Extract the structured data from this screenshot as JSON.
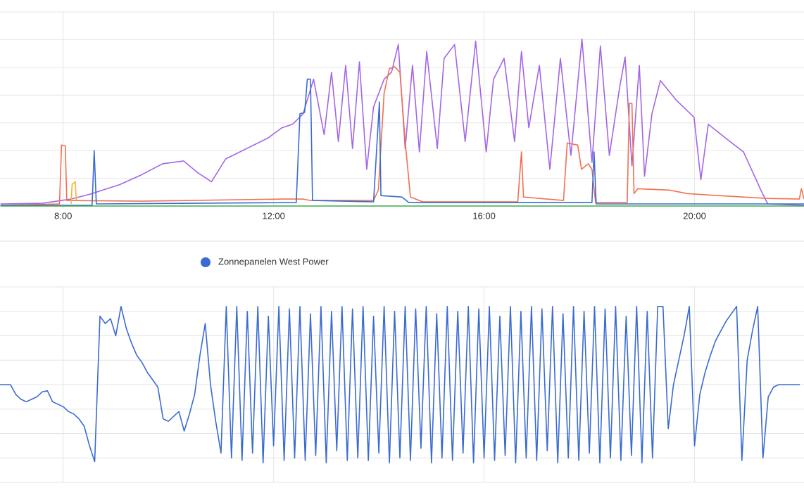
{
  "chart_data": [
    {
      "type": "line",
      "xlim": [
        6.8,
        22.08
      ],
      "xticks": [
        {
          "value": 8,
          "label": "8:00"
        },
        {
          "value": 12,
          "label": "12:00"
        },
        {
          "value": 16,
          "label": "16:00"
        },
        {
          "value": 20,
          "label": "20:00"
        }
      ],
      "ylim": [
        0,
        280
      ],
      "yticks": [
        0,
        40,
        80,
        120,
        160,
        200,
        240,
        280
      ],
      "grid": true,
      "series": [
        {
          "color": "#a366e6",
          "x": [
            6.81,
            7.61,
            8.15,
            8.55,
            9.08,
            9.49,
            9.89,
            10.29,
            10.56,
            10.82,
            11.09,
            11.49,
            11.89,
            12.16,
            12.36,
            12.56,
            12.76,
            12.96,
            13.1,
            13.23,
            13.37,
            13.5,
            13.63,
            13.77,
            13.9,
            14.1,
            14.24,
            14.37,
            14.5,
            14.64,
            14.77,
            14.91,
            15.11,
            15.24,
            15.44,
            15.64,
            15.84,
            16.04,
            16.18,
            16.38,
            16.58,
            16.71,
            16.85,
            17.05,
            17.25,
            17.45,
            17.65,
            17.86,
            18.05,
            18.21,
            18.38,
            18.58,
            18.68,
            18.81,
            18.95,
            19.05,
            19.19,
            19.35,
            19.65,
            19.99,
            20.12,
            20.26,
            20.59,
            20.93,
            21.26,
            21.39,
            22.08
          ],
          "values": [
            3,
            4,
            10,
            18,
            31,
            45,
            61,
            65,
            48,
            35,
            68,
            83,
            98,
            113,
            118,
            133,
            183,
            103,
            193,
            93,
            203,
            83,
            208,
            53,
            143,
            183,
            193,
            233,
            83,
            203,
            78,
            223,
            83,
            213,
            233,
            93,
            238,
            78,
            183,
            213,
            93,
            223,
            113,
            203,
            53,
            213,
            73,
            241,
            63,
            231,
            73,
            173,
            215,
            58,
            203,
            43,
            133,
            181,
            153,
            128,
            38,
            118,
            98,
            78,
            23,
            3,
            1
          ]
        },
        {
          "color": "#f2704f",
          "x": [
            6.81,
            7.93,
            7.97,
            8.04,
            8.07,
            9.49,
            12.16,
            12.56,
            12.7,
            13.9,
            13.99,
            14.1,
            14.2,
            14.3,
            14.4,
            14.5,
            14.6,
            14.84,
            16.64,
            16.71,
            16.75,
            17.51,
            17.58,
            17.78,
            17.85,
            17.98,
            18.05,
            18.12,
            18.72,
            18.76,
            18.81,
            18.85,
            18.92,
            19.52,
            19.86,
            20.46,
            21.39,
            21.99,
            22.03,
            22.08
          ],
          "values": [
            1,
            3,
            88,
            87,
            8,
            7,
            10,
            10,
            8,
            8,
            23,
            163,
            198,
            201,
            193,
            93,
            13,
            6,
            6,
            78,
            13,
            8,
            91,
            88,
            53,
            61,
            53,
            5,
            5,
            148,
            148,
            18,
            25,
            23,
            18,
            15,
            11,
            10,
            25,
            10
          ]
        },
        {
          "color": "#3a6bd2",
          "x": [
            6.81,
            8.55,
            8.59,
            8.63,
            12.43,
            12.5,
            12.59,
            12.64,
            12.7,
            12.74,
            13.9,
            14.01,
            14.04,
            14.44,
            14.57,
            18.05,
            18.09,
            18.13,
            22.08
          ],
          "values": [
            1,
            1,
            80,
            3,
            5,
            133,
            135,
            183,
            183,
            8,
            6,
            150,
            15,
            13,
            5,
            5,
            78,
            3,
            3
          ]
        },
        {
          "color": "#f4b532",
          "x": [
            8.15,
            8.17,
            8.23,
            8.25
          ],
          "values": [
            3,
            31,
            35,
            8
          ]
        },
        {
          "color": "#3dab4c",
          "x": [
            6.81,
            22.08
          ],
          "values": [
            0,
            0
          ]
        }
      ]
    },
    {
      "type": "line",
      "xlim": [
        6.8,
        22.08
      ],
      "xticks": [
        8,
        12,
        16,
        20
      ],
      "ylim": [
        0,
        8
      ],
      "yticks": [
        0,
        1,
        2,
        3,
        4,
        5,
        6,
        7,
        8
      ],
      "grid": true,
      "series": [
        {
          "name": "Zonnepanelen West Power",
          "color": "#3a6bd2",
          "x": [
            6.8,
            6.9,
            7,
            7.1,
            7.2,
            7.3,
            7.4,
            7.5,
            7.6,
            7.7,
            7.8,
            7.9,
            8,
            8.1,
            8.2,
            8.3,
            8.4,
            8.5,
            8.6,
            8.7,
            8.8,
            8.9,
            9,
            9.1,
            9.2,
            9.3,
            9.4,
            9.5,
            9.6,
            9.7,
            9.8,
            9.9,
            10,
            10.1,
            10.2,
            10.3,
            10.4,
            10.5,
            10.6,
            10.7,
            10.8,
            10.9,
            11,
            11.1,
            11.2,
            11.3,
            11.4,
            11.5,
            11.6,
            11.7,
            11.8,
            11.9,
            12,
            12.1,
            12.2,
            12.3,
            12.4,
            12.5,
            12.6,
            12.7,
            12.8,
            12.9,
            13,
            13.1,
            13.2,
            13.3,
            13.4,
            13.5,
            13.6,
            13.7,
            13.8,
            13.9,
            14,
            14.1,
            14.2,
            14.3,
            14.4,
            14.5,
            14.6,
            14.7,
            14.8,
            14.9,
            15,
            15.1,
            15.2,
            15.3,
            15.4,
            15.5,
            15.6,
            15.7,
            15.8,
            15.9,
            16,
            16.1,
            16.2,
            16.3,
            16.4,
            16.5,
            16.6,
            16.7,
            16.8,
            16.9,
            17,
            17.1,
            17.2,
            17.3,
            17.4,
            17.5,
            17.6,
            17.7,
            17.8,
            17.9,
            18,
            18.1,
            18.2,
            18.3,
            18.4,
            18.5,
            18.6,
            18.7,
            18.8,
            18.9,
            19,
            19.1,
            19.2,
            19.3,
            19.4,
            19.5,
            19.6,
            19.7,
            19.8,
            19.9,
            20,
            20.1,
            20.2,
            20.3,
            20.4,
            20.5,
            20.6,
            20.7,
            20.8,
            20.9,
            21,
            21.1,
            21.2,
            21.3,
            21.4,
            21.5,
            21.6,
            21.7,
            21.8,
            21.9,
            22
          ],
          "values": [
            4.0,
            4.0,
            4.0,
            3.6,
            3.4,
            3.3,
            3.4,
            3.5,
            3.7,
            3.75,
            3.3,
            3.2,
            3.1,
            2.9,
            2.8,
            2.6,
            2.3,
            1.5,
            0.85,
            6.8,
            6.5,
            6.7,
            6.0,
            7.2,
            6.3,
            5.7,
            5.2,
            4.9,
            4.5,
            4.2,
            3.9,
            2.6,
            2.5,
            2.7,
            2.9,
            2.1,
            2.8,
            3.6,
            5.2,
            6.5,
            4.0,
            2.5,
            1.2,
            7.2,
            1.0,
            7.2,
            0.9,
            7.0,
            1.2,
            7.2,
            0.8,
            6.8,
            1.5,
            7.2,
            0.9,
            7.1,
            1.0,
            7.2,
            0.9,
            6.9,
            1.1,
            7.2,
            0.8,
            7.0,
            1.3,
            7.2,
            0.9,
            7.1,
            1.0,
            7.2,
            0.9,
            6.8,
            1.2,
            7.2,
            0.8,
            7.0,
            1.0,
            7.2,
            0.9,
            7.1,
            1.4,
            7.2,
            0.8,
            6.9,
            1.0,
            7.2,
            0.9,
            7.0,
            1.2,
            7.2,
            0.8,
            7.1,
            1.0,
            7.2,
            0.9,
            6.8,
            1.1,
            7.2,
            0.8,
            7.0,
            1.0,
            7.2,
            0.9,
            7.1,
            1.3,
            7.2,
            0.8,
            6.9,
            1.0,
            7.2,
            0.9,
            7.0,
            1.2,
            7.2,
            0.8,
            7.1,
            1.0,
            7.2,
            0.9,
            6.8,
            1.1,
            7.2,
            0.8,
            7.0,
            1.0,
            7.2,
            7.2,
            2.2,
            4.0,
            5.0,
            6.0,
            7.2,
            1.5,
            3.6,
            4.5,
            5.2,
            5.8,
            6.2,
            6.6,
            6.9,
            7.2,
            0.9,
            5.0,
            6.2,
            7.2,
            1.0,
            3.5,
            3.9,
            4.0,
            4.0,
            4.0,
            4.0,
            4.0
          ]
        }
      ]
    }
  ]
}
